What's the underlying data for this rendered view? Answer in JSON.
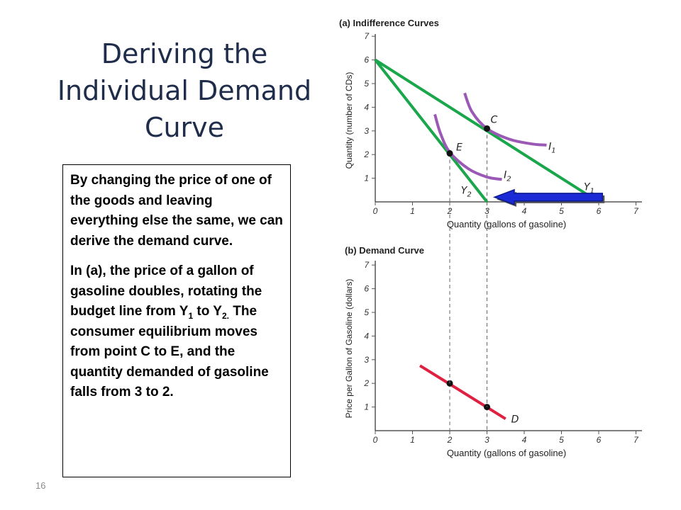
{
  "slide": {
    "title_lines": [
      "Deriving the",
      "Individual Demand",
      "Curve"
    ],
    "paragraph1": "By changing the price of one of the goods and leaving everything else the same, we can derive the demand curve.",
    "p2_part1": "In (a), the price of a gallon of gasoline doubles, rotating the budget line from Y",
    "p2_sub1": "1",
    "p2_part2": " to Y",
    "p2_sub2": "2.",
    "p2_part3": " The consumer equilibrium moves from point C to E, and the quantity demanded of gasoline falls from 3 to 2.",
    "slide_number": "16"
  },
  "chart_data": [
    {
      "type": "line",
      "panel_title": "(a) Indifference Curves",
      "xlabel": "Quantity (gallons of gasoline)",
      "ylabel": "Quantity (number of CDs)",
      "xlim": [
        0,
        7
      ],
      "ylim": [
        0,
        7
      ],
      "x_ticks": [
        "0",
        "1",
        "2",
        "3",
        "4",
        "5",
        "6",
        "7"
      ],
      "y_ticks": [
        "1",
        "2",
        "3",
        "4",
        "5",
        "6",
        "7"
      ],
      "colors": {
        "budget": "#1aa64a",
        "indifference": "#9b59b6",
        "axis": "#555555"
      },
      "budget_lines": [
        {
          "name": "Y",
          "sub": "1",
          "points": [
            [
              0,
              6
            ],
            [
              6,
              0
            ]
          ]
        },
        {
          "name": "Y",
          "sub": "2",
          "points": [
            [
              0,
              6
            ],
            [
              3,
              0
            ]
          ]
        }
      ],
      "indifference_curves": [
        {
          "name": "I",
          "sub": "1",
          "points": [
            [
              2.4,
              4.6
            ],
            [
              2.6,
              3.8
            ],
            [
              3.0,
              3.1
            ],
            [
              3.6,
              2.65
            ],
            [
              4.2,
              2.45
            ],
            [
              4.6,
              2.4
            ]
          ]
        },
        {
          "name": "I",
          "sub": "2",
          "points": [
            [
              1.6,
              3.7
            ],
            [
              1.75,
              2.9
            ],
            [
              2.0,
              2.1
            ],
            [
              2.5,
              1.4
            ],
            [
              3.0,
              1.05
            ],
            [
              3.4,
              0.95
            ]
          ]
        }
      ],
      "equilibrium_points": [
        {
          "label": "C",
          "x": 3,
          "y": 3.1
        },
        {
          "label": "E",
          "x": 2,
          "y": 2.05
        }
      ],
      "arrow": {
        "from_x": 6.1,
        "to_x": 3.2,
        "y": 0.2,
        "color": "#1a2bd6"
      }
    },
    {
      "type": "line",
      "panel_title": "(b) Demand Curve",
      "xlabel": "Quantity (gallons of gasoline)",
      "ylabel": "Price per Gallon of Gasoline (dollars)",
      "xlim": [
        0,
        7
      ],
      "ylim": [
        0,
        7
      ],
      "x_ticks": [
        "0",
        "1",
        "2",
        "3",
        "4",
        "5",
        "6",
        "7"
      ],
      "y_ticks": [
        "1",
        "2",
        "3",
        "4",
        "5",
        "6",
        "7"
      ],
      "colors": {
        "demand": "#e02040",
        "axis": "#555555"
      },
      "series": [
        {
          "name": "D",
          "points": [
            [
              1.2,
              2.75
            ],
            [
              3.5,
              0.5
            ]
          ]
        }
      ],
      "points": [
        {
          "x": 2,
          "y": 2
        },
        {
          "x": 3,
          "y": 1
        }
      ]
    }
  ]
}
